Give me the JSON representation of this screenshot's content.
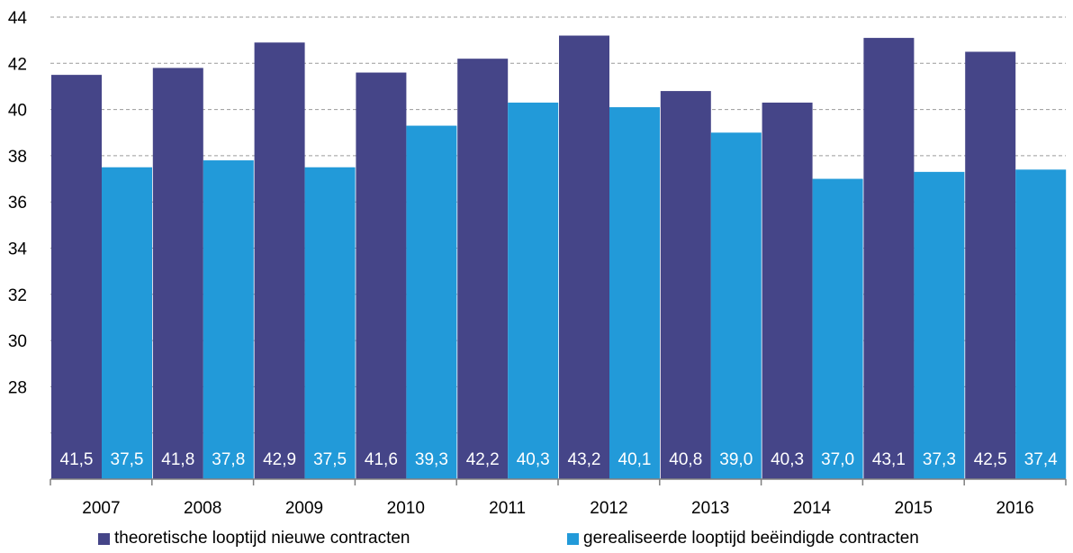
{
  "chart_data": {
    "type": "bar",
    "title": "",
    "xlabel": "",
    "ylabel": "",
    "ylim": [
      24,
      44
    ],
    "yticks": [
      28,
      30,
      32,
      34,
      36,
      38,
      40,
      42,
      44
    ],
    "grid": true,
    "legend_position": "bottom",
    "categories": [
      "2007",
      "2008",
      "2009",
      "2010",
      "2011",
      "2012",
      "2013",
      "2014",
      "2015",
      "2016"
    ],
    "series": [
      {
        "name": "theoretische looptijd nieuwe contracten",
        "color": "#454588",
        "values": [
          41.5,
          41.8,
          42.9,
          41.6,
          42.2,
          43.2,
          40.8,
          40.3,
          43.1,
          42.5
        ],
        "labels": [
          "41,5",
          "41,8",
          "42,9",
          "41,6",
          "42,2",
          "43,2",
          "40,8",
          "40,3",
          "43,1",
          "42,5"
        ]
      },
      {
        "name": "gerealiseerde looptijd beëindigde contracten",
        "color": "#229ad9",
        "values": [
          37.5,
          37.8,
          37.5,
          39.3,
          40.3,
          40.1,
          39.0,
          37.0,
          37.3,
          37.4
        ],
        "labels": [
          "37,5",
          "37,8",
          "37,5",
          "39,3",
          "40,3",
          "40,1",
          "39,0",
          "37,0",
          "37,3",
          "37,4"
        ]
      }
    ]
  }
}
